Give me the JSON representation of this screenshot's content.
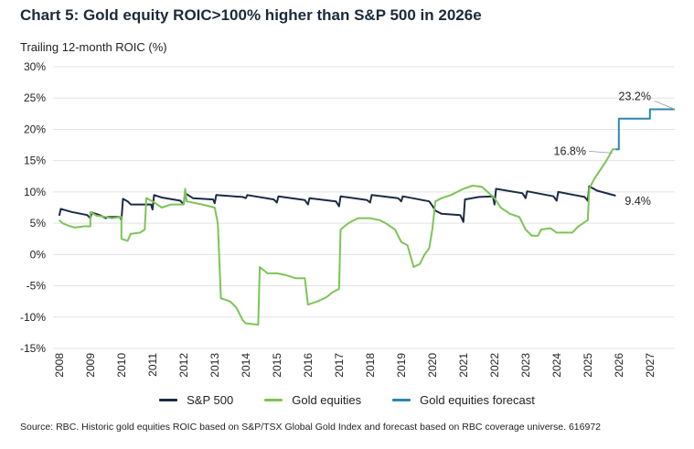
{
  "chart_data": {
    "type": "line",
    "title": "Chart 5: Gold equity ROIC>100% higher than S&P 500 in 2026e",
    "ylabel": "Trailing 12-month ROIC (%)",
    "xlabel": "",
    "ylim": [
      -15,
      30
    ],
    "xlim": [
      2007.8,
      2027.8
    ],
    "yticks": [
      "30%",
      "25%",
      "20%",
      "15%",
      "10%",
      "5%",
      "0%",
      "-5%",
      "-10%",
      "-15%"
    ],
    "ytick_values": [
      30,
      25,
      20,
      15,
      10,
      5,
      0,
      -5,
      -10,
      -15
    ],
    "xticks": [
      "2008",
      "2009",
      "2010",
      "2011",
      "2012",
      "2013",
      "2014",
      "2015",
      "2016",
      "2017",
      "2018",
      "2019",
      "2020",
      "2021",
      "2022",
      "2023",
      "2024",
      "2025",
      "2026",
      "2027"
    ],
    "grid": "horizontal",
    "legend_placement": "bottom",
    "series": [
      {
        "name": "S&P 500",
        "color": "#1c2b45",
        "points": [
          [
            2008.0,
            6.2
          ],
          [
            2008.05,
            7.3
          ],
          [
            2008.4,
            6.8
          ],
          [
            2008.9,
            6.3
          ],
          [
            2009.0,
            5.8
          ],
          [
            2009.05,
            6.7
          ],
          [
            2009.3,
            6.3
          ],
          [
            2009.5,
            5.8
          ],
          [
            2009.55,
            6.0
          ],
          [
            2009.95,
            6.0
          ],
          [
            2010.0,
            5.5
          ],
          [
            2010.05,
            8.9
          ],
          [
            2010.2,
            8.5
          ],
          [
            2010.3,
            8.0
          ],
          [
            2010.95,
            8.0
          ],
          [
            2011.0,
            7.2
          ],
          [
            2011.05,
            9.5
          ],
          [
            2011.3,
            9.1
          ],
          [
            2011.9,
            8.6
          ],
          [
            2012.0,
            8.0
          ],
          [
            2012.05,
            9.8
          ],
          [
            2012.3,
            9.0
          ],
          [
            2012.95,
            8.8
          ],
          [
            2013.0,
            8.2
          ],
          [
            2013.05,
            9.5
          ],
          [
            2013.9,
            9.2
          ],
          [
            2014.0,
            9.0
          ],
          [
            2014.05,
            9.5
          ],
          [
            2014.9,
            8.8
          ],
          [
            2015.0,
            8.3
          ],
          [
            2015.05,
            9.3
          ],
          [
            2015.9,
            8.7
          ],
          [
            2016.0,
            8.0
          ],
          [
            2016.05,
            9.0
          ],
          [
            2016.9,
            8.5
          ],
          [
            2017.0,
            7.7
          ],
          [
            2017.05,
            9.3
          ],
          [
            2017.9,
            8.7
          ],
          [
            2018.0,
            8.3
          ],
          [
            2018.05,
            9.5
          ],
          [
            2018.9,
            9.0
          ],
          [
            2019.0,
            8.5
          ],
          [
            2019.05,
            9.3
          ],
          [
            2019.9,
            8.5
          ],
          [
            2020.0,
            7.8
          ],
          [
            2020.1,
            7.0
          ],
          [
            2020.3,
            6.5
          ],
          [
            2020.9,
            6.3
          ],
          [
            2021.0,
            5.2
          ],
          [
            2021.05,
            8.8
          ],
          [
            2021.5,
            9.2
          ],
          [
            2021.95,
            9.3
          ],
          [
            2022.0,
            8.0
          ],
          [
            2022.05,
            10.5
          ],
          [
            2022.9,
            9.8
          ],
          [
            2023.0,
            9.0
          ],
          [
            2023.05,
            10.1
          ],
          [
            2023.9,
            9.3
          ],
          [
            2024.0,
            8.6
          ],
          [
            2024.05,
            10.0
          ],
          [
            2024.9,
            9.2
          ],
          [
            2025.0,
            8.6
          ],
          [
            2025.05,
            10.9
          ],
          [
            2025.3,
            10.2
          ],
          [
            2025.9,
            9.4
          ]
        ]
      },
      {
        "name": "Gold equities",
        "color": "#7dc458",
        "points": [
          [
            2008.0,
            5.5
          ],
          [
            2008.1,
            5.0
          ],
          [
            2008.3,
            4.6
          ],
          [
            2008.5,
            4.3
          ],
          [
            2008.8,
            4.5
          ],
          [
            2009.0,
            4.5
          ],
          [
            2009.0,
            6.8
          ],
          [
            2009.2,
            6.2
          ],
          [
            2009.5,
            6.0
          ],
          [
            2009.7,
            5.8
          ],
          [
            2010.0,
            6.0
          ],
          [
            2010.0,
            2.5
          ],
          [
            2010.2,
            2.2
          ],
          [
            2010.3,
            3.3
          ],
          [
            2010.6,
            3.5
          ],
          [
            2010.75,
            4.0
          ],
          [
            2010.8,
            9.0
          ],
          [
            2011.0,
            8.5
          ],
          [
            2011.3,
            7.5
          ],
          [
            2011.6,
            8.0
          ],
          [
            2012.0,
            8.0
          ],
          [
            2012.05,
            10.5
          ],
          [
            2012.1,
            8.5
          ],
          [
            2012.6,
            8.0
          ],
          [
            2013.0,
            7.5
          ],
          [
            2013.1,
            5.0
          ],
          [
            2013.2,
            -7.0
          ],
          [
            2013.5,
            -7.5
          ],
          [
            2013.7,
            -8.5
          ],
          [
            2013.9,
            -10.5
          ],
          [
            2014.0,
            -11.0
          ],
          [
            2014.4,
            -11.2
          ],
          [
            2014.45,
            -2.0
          ],
          [
            2014.7,
            -3.0
          ],
          [
            2015.0,
            -3.0
          ],
          [
            2015.3,
            -3.3
          ],
          [
            2015.6,
            -3.8
          ],
          [
            2015.9,
            -3.8
          ],
          [
            2016.0,
            -8.0
          ],
          [
            2016.3,
            -7.5
          ],
          [
            2016.6,
            -6.8
          ],
          [
            2016.8,
            -6.0
          ],
          [
            2017.0,
            -5.5
          ],
          [
            2017.05,
            4.0
          ],
          [
            2017.3,
            5.0
          ],
          [
            2017.6,
            5.8
          ],
          [
            2018.0,
            5.8
          ],
          [
            2018.3,
            5.5
          ],
          [
            2018.5,
            5.0
          ],
          [
            2018.8,
            4.0
          ],
          [
            2019.0,
            2.0
          ],
          [
            2019.2,
            1.5
          ],
          [
            2019.4,
            -2.0
          ],
          [
            2019.6,
            -1.5
          ],
          [
            2019.75,
            0.0
          ],
          [
            2019.9,
            1.0
          ],
          [
            2020.0,
            4.0
          ],
          [
            2020.1,
            8.5
          ],
          [
            2020.3,
            9.0
          ],
          [
            2020.6,
            9.5
          ],
          [
            2020.8,
            10.0
          ],
          [
            2021.0,
            10.5
          ],
          [
            2021.3,
            11.0
          ],
          [
            2021.6,
            10.8
          ],
          [
            2022.0,
            9.0
          ],
          [
            2022.2,
            7.5
          ],
          [
            2022.5,
            6.5
          ],
          [
            2022.8,
            6.0
          ],
          [
            2023.0,
            4.0
          ],
          [
            2023.2,
            3.0
          ],
          [
            2023.4,
            3.0
          ],
          [
            2023.5,
            4.0
          ],
          [
            2023.8,
            4.2
          ],
          [
            2024.0,
            3.5
          ],
          [
            2024.5,
            3.5
          ],
          [
            2024.7,
            4.5
          ],
          [
            2025.0,
            5.5
          ],
          [
            2025.05,
            10.5
          ],
          [
            2025.2,
            12.0
          ],
          [
            2025.4,
            13.5
          ],
          [
            2025.6,
            15.0
          ],
          [
            2025.8,
            16.8
          ],
          [
            2025.9,
            16.8
          ]
        ]
      },
      {
        "name": "Gold equities forecast",
        "color": "#2f86b0",
        "points": [
          [
            2025.9,
            16.8
          ],
          [
            2026.0,
            16.8
          ],
          [
            2026.0,
            21.7
          ],
          [
            2027.0,
            21.7
          ],
          [
            2027.0,
            23.2
          ],
          [
            2027.8,
            23.2
          ]
        ]
      }
    ],
    "annotations": [
      {
        "text": "23.2%",
        "x": 2027.8,
        "y": 23.2
      },
      {
        "text": "16.8%",
        "x": 2025.8,
        "y": 16.8
      },
      {
        "text": "9.4%",
        "x": 2025.9,
        "y": 9.4
      }
    ],
    "source": "Source: RBC. Historic gold equities ROIC based on S&P/TSX Global Gold Index and forecast based on RBC coverage universe. 616972"
  }
}
